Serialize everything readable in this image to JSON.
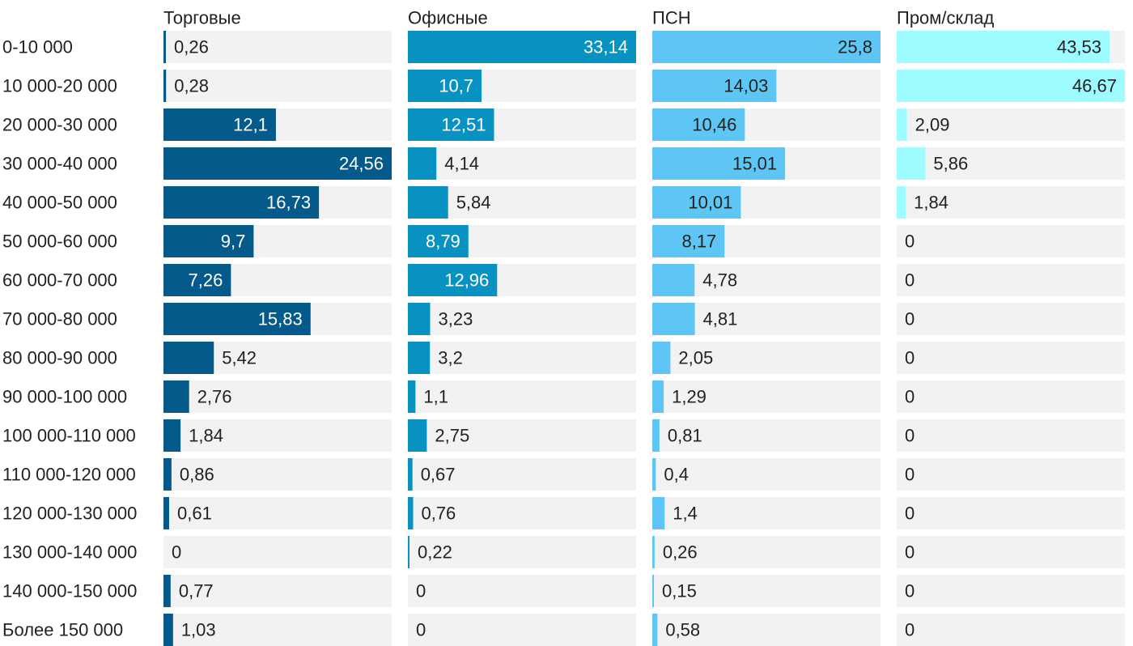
{
  "chart_data": {
    "type": "bar",
    "orientation": "horizontal",
    "title": "",
    "xlabel": "",
    "ylabel": "",
    "decimal_separator": ",",
    "categories": [
      "0-10 000",
      "10 000-20 000",
      "20 000-30 000",
      "30 000-40 000",
      "40 000-50 000",
      "50 000-60 000",
      "60 000-70 000",
      "70 000-80 000",
      "80 000-90 000",
      "90 000-100 000",
      "100 000-110 000",
      "110 000-120 000",
      "120 000-130 000",
      "130 000-140 000",
      "140 000-150 000",
      "Более 150 000"
    ],
    "series": [
      {
        "name": "Торговые",
        "color": "#045a8a",
        "xlim": [
          0,
          24.56
        ],
        "values": [
          0.26,
          0.28,
          12.1,
          24.56,
          16.73,
          9.7,
          7.26,
          15.83,
          5.42,
          2.76,
          1.84,
          0.86,
          0.61,
          0,
          0.77,
          1.03
        ]
      },
      {
        "name": "Офисные",
        "color": "#0892c1",
        "xlim": [
          0,
          33.14
        ],
        "values": [
          33.14,
          10.7,
          12.51,
          4.14,
          5.84,
          8.79,
          12.96,
          3.23,
          3.2,
          1.1,
          2.75,
          0.67,
          0.76,
          0.22,
          0,
          0
        ]
      },
      {
        "name": "ПСН",
        "color": "#5dc6f4",
        "xlim": [
          0,
          25.8
        ],
        "values": [
          25.8,
          14.03,
          10.46,
          15.01,
          10.01,
          8.17,
          4.78,
          4.81,
          2.05,
          1.29,
          0.81,
          0.4,
          1.4,
          0.26,
          0.15,
          0.58
        ]
      },
      {
        "name": "Пром/склад",
        "color": "#9efbff",
        "xlim": [
          0,
          46.67
        ],
        "values": [
          43.53,
          46.67,
          2.09,
          5.86,
          1.84,
          0,
          0,
          0,
          0,
          0,
          0,
          0,
          0,
          0,
          0,
          0
        ]
      }
    ]
  },
  "colors": {
    "track": "#f2f2f2",
    "text": "#222222",
    "label_on_bar_light": "#ffffff",
    "label_on_bar_dark": "#222222"
  }
}
